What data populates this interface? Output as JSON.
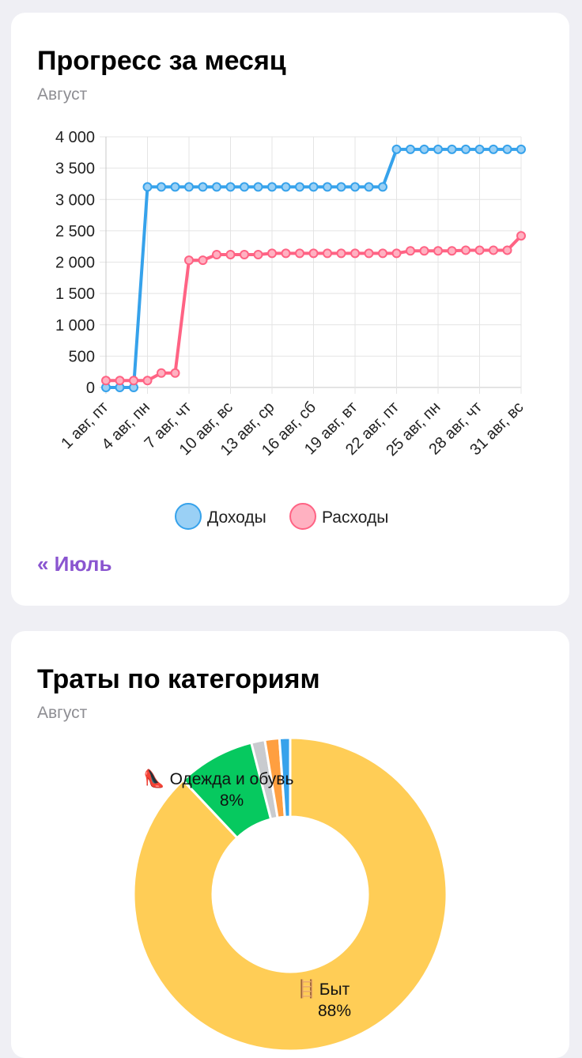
{
  "progress_card": {
    "title": "Прогресс за месяц",
    "subtitle": "Август",
    "prev_link": "« Июль"
  },
  "categories_card": {
    "title": "Траты по категориям",
    "subtitle": "Август"
  },
  "chart_data": [
    {
      "type": "line",
      "x_tick_labels": [
        "1 авг, пт",
        "4 авг, пн",
        "7 авг, чт",
        "10 авг, вс",
        "13 авг, ср",
        "16 авг, сб",
        "19 авг, вт",
        "22 авг, пт",
        "25 авг, пн",
        "28 авг, чт",
        "31 авг, вс"
      ],
      "x": [
        1,
        2,
        3,
        4,
        5,
        6,
        7,
        8,
        9,
        10,
        11,
        12,
        13,
        14,
        15,
        16,
        17,
        18,
        19,
        20,
        21,
        22,
        23,
        24,
        25,
        26,
        27,
        28,
        29,
        30,
        31
      ],
      "y_tick_labels": [
        "4 000",
        "3 500",
        "3 000",
        "2 500",
        "2 000",
        "1 500",
        "1 000",
        "500",
        "0"
      ],
      "ylim": [
        0,
        4000
      ],
      "grid": true,
      "legend": "bottom",
      "series": [
        {
          "name": "Доходы",
          "color": "#36a2eb",
          "fill": "#9ad0f5",
          "values": [
            0,
            0,
            0,
            3200,
            3200,
            3200,
            3200,
            3200,
            3200,
            3200,
            3200,
            3200,
            3200,
            3200,
            3200,
            3200,
            3200,
            3200,
            3200,
            3200,
            3200,
            3800,
            3800,
            3800,
            3800,
            3800,
            3800,
            3800,
            3800,
            3800,
            3800
          ]
        },
        {
          "name": "Расходы",
          "color": "#ff6384",
          "fill": "#ffb1c1",
          "values": [
            110,
            110,
            110,
            110,
            230,
            230,
            2030,
            2030,
            2120,
            2120,
            2120,
            2120,
            2140,
            2140,
            2140,
            2140,
            2140,
            2140,
            2140,
            2140,
            2140,
            2140,
            2180,
            2180,
            2180,
            2180,
            2190,
            2190,
            2190,
            2190,
            2420
          ]
        }
      ]
    },
    {
      "type": "pie",
      "donut": true,
      "slices": [
        {
          "label": "Быт",
          "icon": "ladder-icon",
          "icon_glyph": "🪜",
          "value": 88,
          "percent_label": "88%",
          "color": "#ffcd56"
        },
        {
          "label": "Одежда и обувь",
          "icon": "high-heel-icon",
          "icon_glyph": "👠",
          "value": 8,
          "percent_label": "8%",
          "color": "#06c95f"
        },
        {
          "label": "",
          "value": 1.4,
          "color": "#c9cbcf"
        },
        {
          "label": "",
          "value": 1.5,
          "color": "#ff9f40"
        },
        {
          "label": "",
          "value": 1.1,
          "color": "#36a2eb"
        }
      ]
    }
  ]
}
